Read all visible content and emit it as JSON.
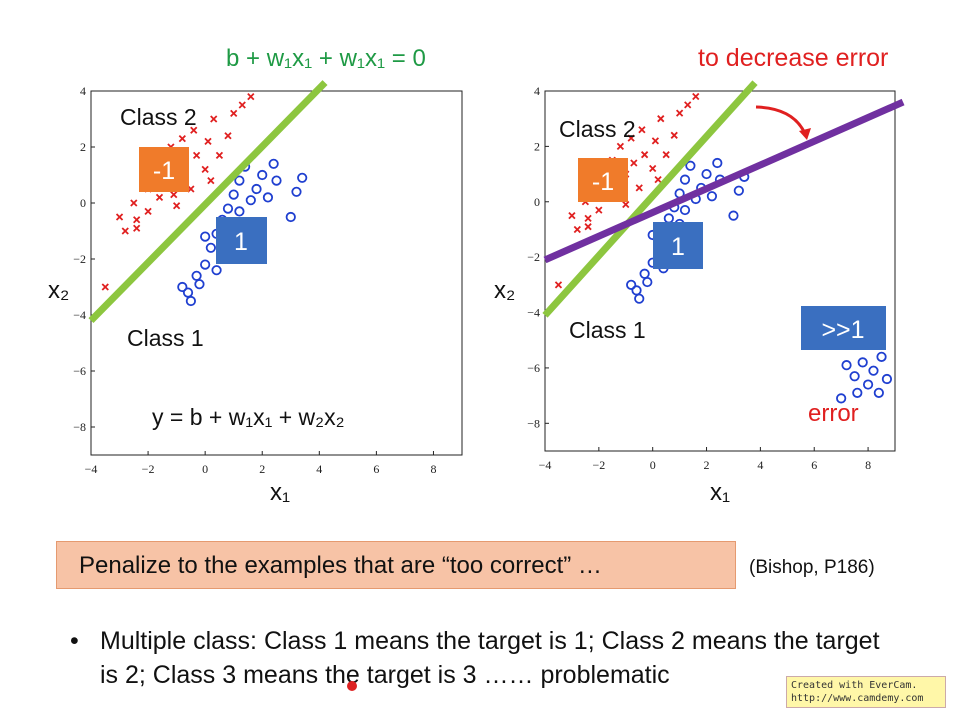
{
  "left_plot": {
    "equation_top": "b + w₁x₁ + w₁x₁ = 0",
    "class2_label": "Class 2",
    "class1_label": "Class 1",
    "box_neg_label": "-1",
    "box_pos_label": "1",
    "equation_bottom": "y = b + w₁x₁ + w₂x₂",
    "xlabel": "x₁",
    "ylabel": "x₂"
  },
  "right_plot": {
    "note_top": "to decrease error",
    "class2_label": "Class 2",
    "class1_label": "Class 1",
    "box_neg_label": "-1",
    "box_pos_label": "1",
    "box_far_label": ">>1",
    "error_label": "error",
    "xlabel": "x₁",
    "ylabel": "x₂"
  },
  "colors": {
    "class2_marker": "#e02020",
    "class1_marker": "#1f3fd0",
    "boundary_green": "#8dc63f",
    "boundary_purple": "#7030a0",
    "box_orange": "#f07b2a",
    "box_blue": "#3a6fc0",
    "equation_green": "#1f9a45",
    "note_red": "#e02020"
  },
  "banner": {
    "text": "Penalize to the examples that are “too correct” …"
  },
  "citation": "(Bishop, P186)",
  "bullet": {
    "text": "Multiple class: Class 1 means the target is 1; Class 2 means the target is 2; Class 3 means the target is 3 …… problematic"
  },
  "watermark": {
    "line1": "Created with EverCam.",
    "line2": "http://www.camdemy.com"
  },
  "chart_data": [
    {
      "type": "scatter",
      "xlim": [
        -4,
        9
      ],
      "ylim": [
        -9,
        4
      ],
      "xticks": [
        "−4",
        "−2",
        "0",
        "2",
        "4",
        "6",
        "8"
      ],
      "yticks": [
        "4",
        "2",
        "0",
        "−2",
        "−4",
        "−6",
        "−8"
      ],
      "series": [
        {
          "marker": "x",
          "points": [
            [
              -3.5,
              -3
            ],
            [
              -3,
              -0.5
            ],
            [
              -2.8,
              -1
            ],
            [
              -2.5,
              0
            ],
            [
              -2.4,
              -0.6
            ],
            [
              -2,
              0.5
            ],
            [
              -2,
              -0.3
            ],
            [
              -1.8,
              1
            ],
            [
              -1.6,
              0.2
            ],
            [
              -1.5,
              1.5
            ],
            [
              -1.3,
              0.7
            ],
            [
              -1.2,
              2
            ],
            [
              -1,
              1
            ],
            [
              -1,
              -0.1
            ],
            [
              -0.8,
              2.3
            ],
            [
              -0.7,
              1.4
            ],
            [
              -0.5,
              0.5
            ],
            [
              -0.4,
              2.6
            ],
            [
              -0.3,
              1.7
            ],
            [
              0,
              1.2
            ],
            [
              0.1,
              2.2
            ],
            [
              0.2,
              0.8
            ],
            [
              0.3,
              3
            ],
            [
              0.5,
              1.7
            ],
            [
              0.8,
              2.4
            ],
            [
              1,
              3.2
            ],
            [
              1.3,
              3.5
            ],
            [
              1.6,
              3.8
            ],
            [
              -2.4,
              -0.9
            ],
            [
              -1.1,
              0.3
            ]
          ]
        },
        {
          "marker": "o",
          "points": [
            [
              -0.8,
              -3
            ],
            [
              -0.5,
              -3.5
            ],
            [
              -0.3,
              -2.6
            ],
            [
              0,
              -2.2
            ],
            [
              0.2,
              -1.6
            ],
            [
              0.4,
              -1.1
            ],
            [
              0.6,
              -0.6
            ],
            [
              0.8,
              -0.2
            ],
            [
              1,
              0.3
            ],
            [
              1.2,
              0.8
            ],
            [
              1.4,
              1.3
            ],
            [
              1.8,
              0.5
            ],
            [
              2,
              1
            ],
            [
              2.2,
              0.2
            ],
            [
              2.5,
              0.8
            ],
            [
              3,
              -0.5
            ],
            [
              3.2,
              0.4
            ],
            [
              3.4,
              0.9
            ],
            [
              0,
              -1.2
            ],
            [
              0.6,
              -1.4
            ],
            [
              1,
              -0.8
            ],
            [
              -0.2,
              -2.9
            ],
            [
              0.4,
              -2.4
            ],
            [
              1.6,
              0.1
            ],
            [
              2.4,
              1.4
            ],
            [
              -0.6,
              -3.2
            ],
            [
              1.2,
              -0.3
            ],
            [
              0.8,
              -1.9
            ]
          ]
        }
      ],
      "lines": [
        {
          "name": "green",
          "points": [
            [
              -4,
              -4.2
            ],
            [
              4.2,
              4.3
            ]
          ]
        }
      ]
    },
    {
      "type": "scatter",
      "xlim": [
        -4,
        9
      ],
      "ylim": [
        -9,
        4
      ],
      "xticks": [
        "−4",
        "−2",
        "0",
        "2",
        "4",
        "6",
        "8"
      ],
      "yticks": [
        "4",
        "2",
        "0",
        "−2",
        "−4",
        "−6",
        "−8"
      ],
      "series": [
        {
          "marker": "x",
          "points": [
            [
              -3.5,
              -3
            ],
            [
              -3,
              -0.5
            ],
            [
              -2.8,
              -1
            ],
            [
              -2.5,
              0
            ],
            [
              -2.4,
              -0.6
            ],
            [
              -2,
              0.5
            ],
            [
              -2,
              -0.3
            ],
            [
              -1.8,
              1
            ],
            [
              -1.6,
              0.2
            ],
            [
              -1.5,
              1.5
            ],
            [
              -1.3,
              0.7
            ],
            [
              -1.2,
              2
            ],
            [
              -1,
              1
            ],
            [
              -1,
              -0.1
            ],
            [
              -0.8,
              2.3
            ],
            [
              -0.7,
              1.4
            ],
            [
              -0.5,
              0.5
            ],
            [
              -0.4,
              2.6
            ],
            [
              -0.3,
              1.7
            ],
            [
              0,
              1.2
            ],
            [
              0.1,
              2.2
            ],
            [
              0.2,
              0.8
            ],
            [
              0.3,
              3
            ],
            [
              0.5,
              1.7
            ],
            [
              0.8,
              2.4
            ],
            [
              1,
              3.2
            ],
            [
              1.3,
              3.5
            ],
            [
              1.6,
              3.8
            ],
            [
              -2.4,
              -0.9
            ],
            [
              -1.1,
              0.3
            ]
          ]
        },
        {
          "marker": "o",
          "points": [
            [
              -0.8,
              -3
            ],
            [
              -0.5,
              -3.5
            ],
            [
              -0.3,
              -2.6
            ],
            [
              0,
              -2.2
            ],
            [
              0.2,
              -1.6
            ],
            [
              0.4,
              -1.1
            ],
            [
              0.6,
              -0.6
            ],
            [
              0.8,
              -0.2
            ],
            [
              1,
              0.3
            ],
            [
              1.2,
              0.8
            ],
            [
              1.4,
              1.3
            ],
            [
              1.8,
              0.5
            ],
            [
              2,
              1
            ],
            [
              2.2,
              0.2
            ],
            [
              2.5,
              0.8
            ],
            [
              3,
              -0.5
            ],
            [
              3.2,
              0.4
            ],
            [
              3.4,
              0.9
            ],
            [
              0,
              -1.2
            ],
            [
              0.6,
              -1.4
            ],
            [
              1,
              -0.8
            ],
            [
              -0.2,
              -2.9
            ],
            [
              0.4,
              -2.4
            ],
            [
              1.6,
              0.1
            ],
            [
              2.4,
              1.4
            ],
            [
              -0.6,
              -3.2
            ],
            [
              1.2,
              -0.3
            ],
            [
              0.8,
              -1.9
            ],
            [
              7.2,
              -5.9
            ],
            [
              7.5,
              -6.3
            ],
            [
              7.8,
              -5.8
            ],
            [
              8,
              -6.6
            ],
            [
              8.2,
              -6.1
            ],
            [
              8.5,
              -5.6
            ],
            [
              8.7,
              -6.4
            ],
            [
              7,
              -7.1
            ],
            [
              7.6,
              -6.9
            ],
            [
              8.4,
              -6.9
            ]
          ]
        }
      ],
      "lines": [
        {
          "name": "green",
          "points": [
            [
              -4,
              -4.1
            ],
            [
              3.8,
              4.3
            ]
          ]
        },
        {
          "name": "purple",
          "points": [
            [
              -4,
              -2.1
            ],
            [
              9.3,
              3.6
            ]
          ]
        }
      ]
    }
  ]
}
